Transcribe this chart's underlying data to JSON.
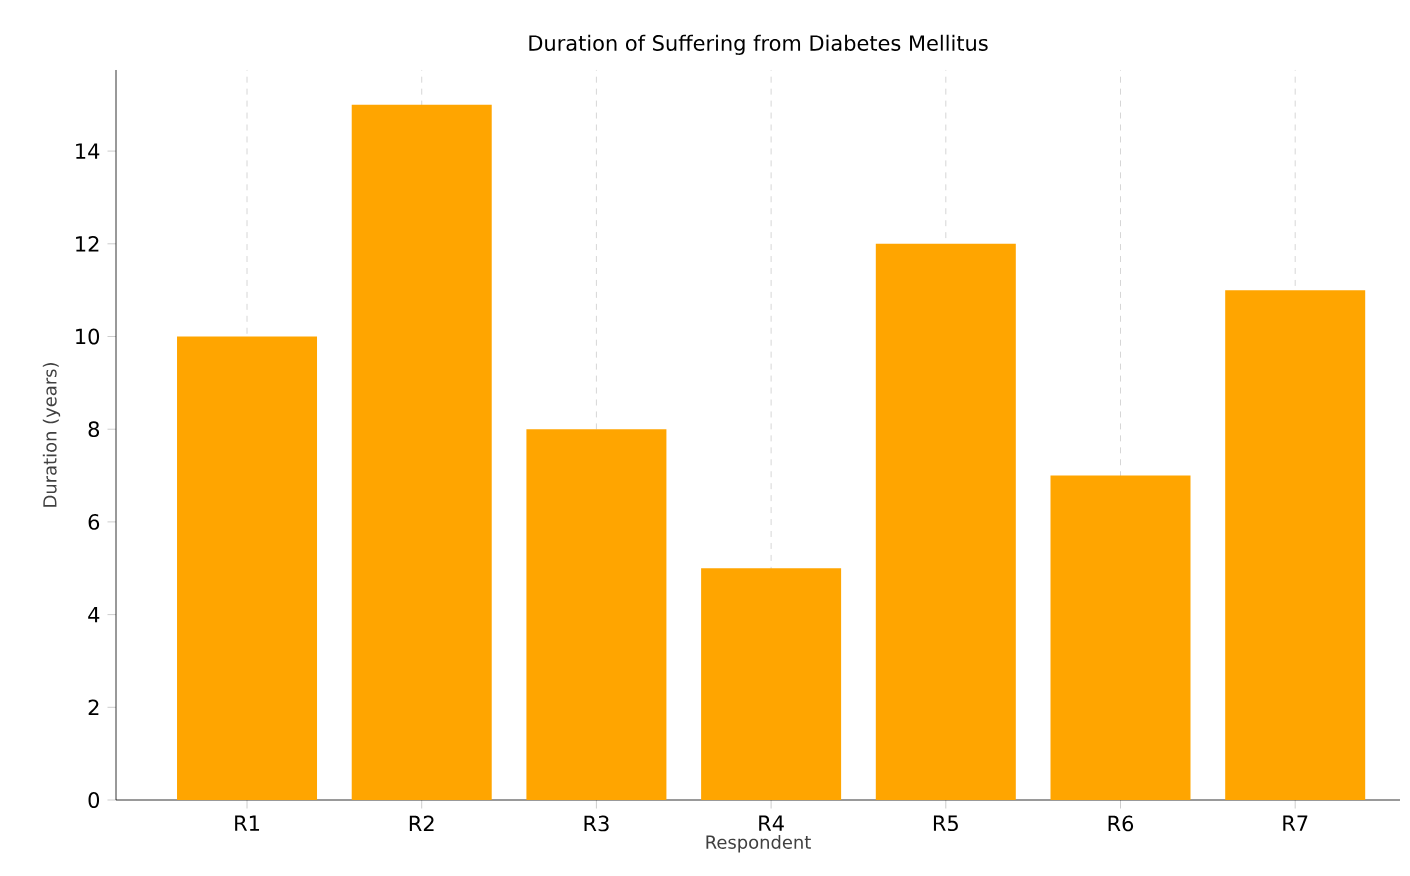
{
  "chart_data": {
    "type": "bar",
    "title": "Duration of Suffering from Diabetes Mellitus",
    "xlabel": "Respondent",
    "ylabel": "Duration (years)",
    "categories": [
      "R1",
      "R2",
      "R3",
      "R4",
      "R5",
      "R6",
      "R7"
    ],
    "values": [
      10,
      15,
      8,
      5,
      12,
      7,
      11
    ],
    "color": "#ffa500",
    "ylim": [
      0,
      15.75
    ],
    "yticks": [
      0,
      2,
      4,
      6,
      8,
      10,
      12,
      14
    ],
    "grid": "x"
  }
}
